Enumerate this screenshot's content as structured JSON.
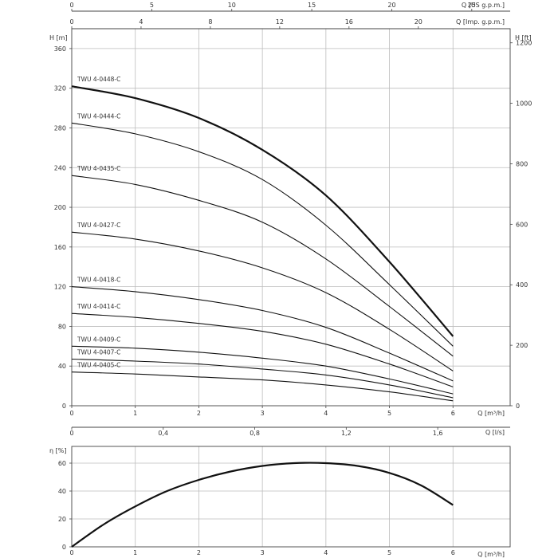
{
  "chart_data": [
    {
      "type": "line",
      "top_axes": [
        {
          "label": "Q [US g.p.m.]",
          "ticks": [
            "0",
            "5",
            "10",
            "15",
            "20",
            "25"
          ],
          "values": [
            0,
            5,
            10,
            15,
            20,
            25
          ],
          "lim": [
            0,
            27.4
          ]
        },
        {
          "label": "Q [Imp. g.p.m.]",
          "ticks": [
            "0",
            "4",
            "8",
            "12",
            "16",
            "20"
          ],
          "values": [
            0,
            4,
            8,
            12,
            16,
            20
          ],
          "lim": [
            0,
            25.3
          ]
        }
      ],
      "xlabel": "Q [m³/h]",
      "xticks": [
        "0",
        "1",
        "2",
        "3",
        "4",
        "5",
        "6"
      ],
      "xlim": [
        0,
        6.9
      ],
      "ylabel": "H [m]",
      "yticks": [
        "0",
        "40",
        "80",
        "120",
        "160",
        "200",
        "240",
        "280",
        "320",
        "360"
      ],
      "ylim": [
        0,
        380
      ],
      "ylabel_right": "H [ft]",
      "yticks_right": [
        "0",
        "200",
        "400",
        "600",
        "800",
        "1000",
        "1200"
      ],
      "bottom_axis": {
        "label": "Q [l/s]",
        "ticks": [
          "0",
          "0,4",
          "0,8",
          "1,2",
          "1,6"
        ],
        "values": [
          0,
          0.4,
          0.8,
          1.2,
          1.6
        ],
        "lim": [
          0,
          1.9167
        ]
      },
      "grid": true,
      "series": [
        {
          "name": "TWU 4-0448-C",
          "x": [
            0,
            1,
            2,
            3,
            4,
            5,
            6
          ],
          "y": [
            322,
            310,
            290,
            258,
            212,
            145,
            70
          ],
          "bold": true
        },
        {
          "name": "TWU 4-0444-C",
          "x": [
            0,
            1,
            2,
            3,
            4,
            5,
            6
          ],
          "y": [
            285,
            274,
            256,
            228,
            182,
            122,
            60
          ]
        },
        {
          "name": "TWU 4-0435-C",
          "x": [
            0,
            1,
            2,
            3,
            4,
            5,
            6
          ],
          "y": [
            232,
            223,
            207,
            185,
            148,
            100,
            50
          ]
        },
        {
          "name": "TWU 4-0427-C",
          "x": [
            0,
            1,
            2,
            3,
            4,
            5,
            6
          ],
          "y": [
            175,
            168,
            156,
            139,
            114,
            77,
            35
          ]
        },
        {
          "name": "TWU 4-0418-C",
          "x": [
            0,
            1,
            2,
            3,
            4,
            5,
            6
          ],
          "y": [
            120,
            115,
            107,
            96,
            79,
            53,
            25
          ]
        },
        {
          "name": "TWU 4-0414-C",
          "x": [
            0,
            1,
            2,
            3,
            4,
            5,
            6
          ],
          "y": [
            93,
            89,
            83,
            75,
            62,
            42,
            19
          ]
        },
        {
          "name": "TWU 4-0409-C",
          "x": [
            0,
            1,
            2,
            3,
            4,
            5,
            6
          ],
          "y": [
            60,
            58,
            54,
            48,
            40,
            27,
            12
          ]
        },
        {
          "name": "TWU 4-0407-C",
          "x": [
            0,
            1,
            2,
            3,
            4,
            5,
            6
          ],
          "y": [
            47,
            45,
            42,
            37,
            31,
            21,
            8
          ]
        },
        {
          "name": "TWU 4-0405-C",
          "x": [
            0,
            1,
            2,
            3,
            4,
            5,
            6
          ],
          "y": [
            34,
            32,
            29,
            26,
            21,
            14,
            5
          ]
        }
      ]
    },
    {
      "type": "line",
      "xlabel": "Q [m³/h]",
      "xticks": [
        "0",
        "1",
        "2",
        "3",
        "4",
        "5",
        "6"
      ],
      "xlim": [
        0,
        6.9
      ],
      "ylabel": "η [%]",
      "yticks": [
        "0",
        "20",
        "40",
        "60"
      ],
      "ylim": [
        0,
        72
      ],
      "grid": true,
      "series": [
        {
          "name": "",
          "x": [
            0,
            0.5,
            1,
            1.5,
            2,
            2.5,
            3,
            3.5,
            4,
            4.5,
            5,
            5.5,
            6
          ],
          "y": [
            0,
            16,
            29,
            40,
            48,
            54,
            58,
            60,
            60,
            58,
            53,
            44,
            30
          ]
        }
      ]
    }
  ]
}
